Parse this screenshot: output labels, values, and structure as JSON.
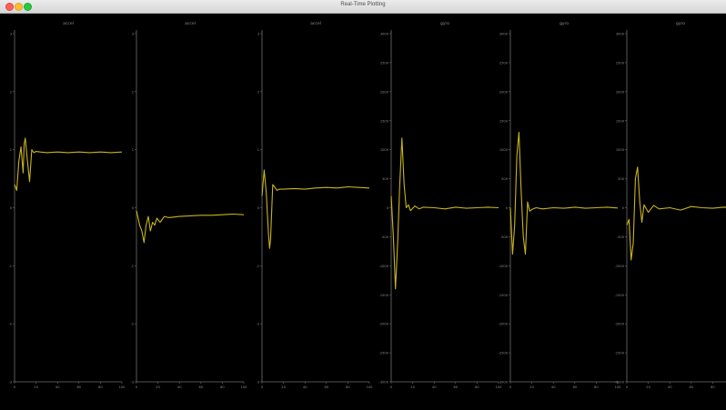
{
  "window": {
    "title": "Real-Time Plotting"
  },
  "colors": {
    "background": "#000000",
    "trace": "#c8b41e",
    "axis": "#6e6e6e",
    "label": "#8c8c8c"
  },
  "chart_data": [
    {
      "type": "line",
      "title": "accel",
      "xlim": [
        0,
        100
      ],
      "ylim": [
        -3,
        3
      ],
      "xticks": [
        "0",
        "10",
        "20",
        "30",
        "40",
        "50",
        "60",
        "70",
        "80",
        "90",
        "100"
      ],
      "yticks": [
        "-3",
        "-2",
        "-1",
        "0",
        "1",
        "2",
        "3"
      ],
      "series": [
        {
          "x": [
            0,
            2,
            4,
            6,
            8,
            9,
            10,
            12,
            14,
            16,
            18,
            20,
            24,
            30,
            40,
            50,
            60,
            70,
            80,
            90,
            100
          ],
          "y": [
            0.4,
            0.3,
            0.8,
            1.05,
            0.6,
            1.1,
            1.2,
            0.8,
            0.45,
            1.0,
            0.95,
            0.97,
            0.96,
            0.95,
            0.96,
            0.95,
            0.96,
            0.95,
            0.96,
            0.95,
            0.96
          ]
        }
      ]
    },
    {
      "type": "line",
      "title": "accel",
      "xlim": [
        0,
        100
      ],
      "ylim": [
        -3,
        3
      ],
      "xticks": [
        "0",
        "10",
        "20",
        "30",
        "40",
        "50",
        "60",
        "70",
        "80",
        "90",
        "100"
      ],
      "yticks": [
        "-3",
        "-2",
        "-1",
        "0",
        "1",
        "2",
        "3"
      ],
      "series": [
        {
          "x": [
            0,
            3,
            5,
            7,
            9,
            11,
            13,
            15,
            17,
            19,
            22,
            26,
            30,
            40,
            50,
            60,
            70,
            80,
            90,
            100
          ],
          "y": [
            -0.05,
            -0.3,
            -0.4,
            -0.6,
            -0.3,
            -0.15,
            -0.4,
            -0.25,
            -0.3,
            -0.18,
            -0.25,
            -0.15,
            -0.17,
            -0.15,
            -0.14,
            -0.13,
            -0.13,
            -0.12,
            -0.11,
            -0.12
          ]
        }
      ]
    },
    {
      "type": "line",
      "title": "accel",
      "xlim": [
        0,
        100
      ],
      "ylim": [
        -3,
        3
      ],
      "xticks": [
        "0",
        "10",
        "20",
        "30",
        "40",
        "50",
        "60",
        "70",
        "80",
        "90",
        "100"
      ],
      "yticks": [
        "-3",
        "-2",
        "-1",
        "0",
        "1",
        "2",
        "3"
      ],
      "series": [
        {
          "x": [
            0,
            2,
            4,
            6,
            7,
            8,
            10,
            12,
            14,
            16,
            20,
            30,
            40,
            50,
            60,
            70,
            80,
            90,
            100
          ],
          "y": [
            0.2,
            0.65,
            0.25,
            -0.45,
            -0.7,
            -0.55,
            0.4,
            0.35,
            0.3,
            0.32,
            0.32,
            0.33,
            0.32,
            0.34,
            0.35,
            0.34,
            0.36,
            0.35,
            0.34
          ]
        }
      ]
    },
    {
      "type": "line",
      "title": "gyro",
      "xlim": [
        0,
        100
      ],
      "ylim": [
        -3000,
        3000
      ],
      "xticks": [
        "0",
        "10",
        "20",
        "30",
        "40",
        "50",
        "60",
        "70",
        "80",
        "90",
        "100"
      ],
      "yticks": [
        "-3000",
        "-2500",
        "-2000",
        "-1500",
        "-1000",
        "-500",
        "0",
        "500",
        "1000",
        "1500",
        "2000",
        "2500",
        "3000"
      ],
      "series": [
        {
          "x": [
            0,
            2,
            4,
            6,
            8,
            10,
            12,
            14,
            16,
            18,
            22,
            26,
            30,
            40,
            50,
            60,
            70,
            80,
            90,
            100
          ],
          "y": [
            200,
            -500,
            -1400,
            -600,
            400,
            1200,
            400,
            0,
            50,
            -50,
            30,
            -20,
            10,
            0,
            -20,
            10,
            -10,
            0,
            10,
            0
          ]
        }
      ]
    },
    {
      "type": "line",
      "title": "gyro",
      "xlim": [
        0,
        100
      ],
      "ylim": [
        -3000,
        3000
      ],
      "xticks": [
        "0",
        "10",
        "20",
        "30",
        "40",
        "50",
        "60",
        "70",
        "80",
        "90",
        "100"
      ],
      "yticks": [
        "-3000",
        "-2500",
        "-2000",
        "-1500",
        "-1000",
        "-500",
        "0",
        "500",
        "1000",
        "1500",
        "2000",
        "2500",
        "3000"
      ],
      "series": [
        {
          "x": [
            0,
            2,
            4,
            6,
            8,
            10,
            12,
            14,
            16,
            18,
            20,
            24,
            30,
            40,
            50,
            60,
            70,
            80,
            90,
            100
          ],
          "y": [
            0,
            -800,
            -300,
            900,
            1300,
            300,
            -500,
            -800,
            100,
            -60,
            -30,
            0,
            -20,
            0,
            -10,
            10,
            -10,
            0,
            10,
            -5
          ]
        }
      ]
    },
    {
      "type": "line",
      "title": "gyro",
      "xlim": [
        0,
        100
      ],
      "ylim": [
        -3000,
        3000
      ],
      "xticks": [
        "0",
        "10",
        "20",
        "30",
        "40",
        "50",
        "60",
        "70",
        "80",
        "90",
        "100"
      ],
      "yticks": [
        "-3000",
        "-2500",
        "-2000",
        "-1500",
        "-1000",
        "-500",
        "0",
        "500",
        "1000",
        "1500",
        "2000",
        "2500",
        "3000"
      ],
      "series": [
        {
          "x": [
            0,
            2,
            4,
            6,
            8,
            10,
            12,
            14,
            16,
            20,
            25,
            30,
            40,
            50,
            60,
            70,
            80,
            90,
            100
          ],
          "y": [
            -300,
            -200,
            -900,
            -600,
            500,
            700,
            100,
            -250,
            50,
            -80,
            40,
            -20,
            0,
            -40,
            20,
            0,
            -10,
            10,
            0
          ]
        }
      ]
    }
  ]
}
